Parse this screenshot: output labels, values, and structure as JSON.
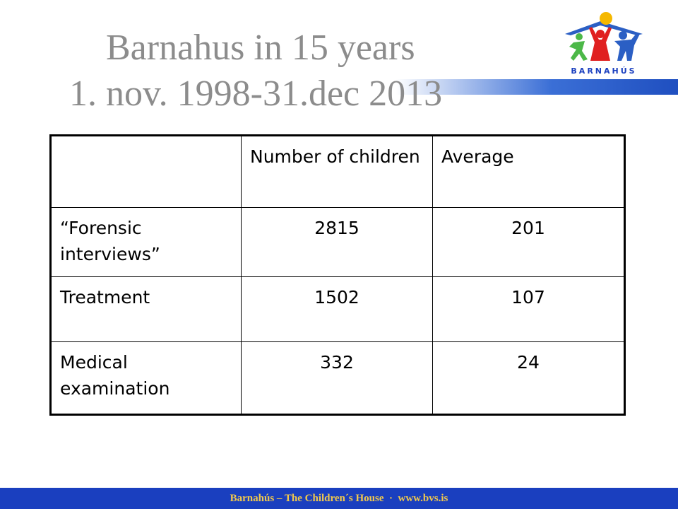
{
  "header": {
    "title": [
      "Barnahus in 15 years",
      "1. nov. 1998-31.dec 2013"
    ]
  },
  "logo": {
    "text": "BARNAHÚS"
  },
  "table": {
    "columns": [
      "",
      "Number of children",
      "Average"
    ],
    "rows": [
      [
        "“Forensic interviews”",
        "2815",
        "201"
      ],
      [
        "Treatment",
        "1502",
        "107"
      ],
      [
        "Medical examination",
        "332",
        "24"
      ]
    ]
  },
  "footer": {
    "text": "Barnahús – The Children´s House  ·  www.bvs.is"
  }
}
